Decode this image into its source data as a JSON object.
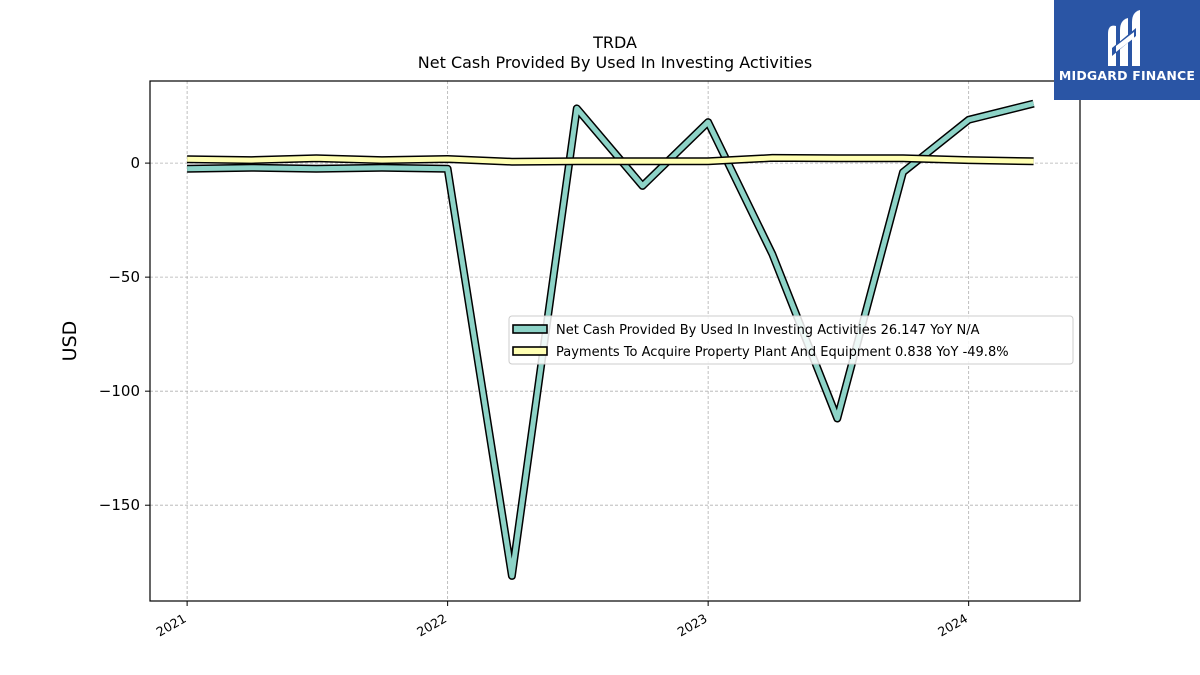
{
  "chart_data": {
    "type": "line",
    "title": "TRDA",
    "subtitle": "Net Cash Provided By Used In Investing Activities",
    "xlabel": "",
    "ylabel": "USD",
    "x_ticks": [
      "2021",
      "2022",
      "2023",
      "2024"
    ],
    "y_ticks": [
      0,
      -50,
      -100,
      -150
    ],
    "ylim": [
      -192,
      36
    ],
    "xlim": [
      "2020-11-10",
      "2024-06-05"
    ],
    "grid": true,
    "legend_position": "center-right",
    "x": [
      "2021-01-01",
      "2021-04-01",
      "2021-07-01",
      "2021-10-01",
      "2022-01-01",
      "2022-04-01",
      "2022-07-01",
      "2022-10-01",
      "2023-01-01",
      "2023-04-01",
      "2023-07-01",
      "2023-10-01",
      "2024-01-01",
      "2024-04-01"
    ],
    "series": [
      {
        "name": "Net Cash Provided By Used In Investing Activities  26.147 YoY N/A",
        "color": "#8dd3c7",
        "values": [
          -2.5,
          -2.0,
          -2.5,
          -2.0,
          -2.5,
          -181.0,
          24.0,
          -10.0,
          18.0,
          -40.0,
          -112.0,
          -4.0,
          19.0,
          26.1
        ]
      },
      {
        "name": "Payments To Acquire Property Plant And Equipment  0.838 YoY -49.8%",
        "color": "#ffffb3",
        "values": [
          1.7,
          1.3,
          2.1,
          1.3,
          1.8,
          0.6,
          0.8,
          0.8,
          0.8,
          2.3,
          2.1,
          2.1,
          1.3,
          0.8
        ]
      }
    ]
  },
  "logo": {
    "text": "MIDGARD FINANCE",
    "background": "#2a55a5",
    "icon": "midgard-m-logo-icon"
  }
}
